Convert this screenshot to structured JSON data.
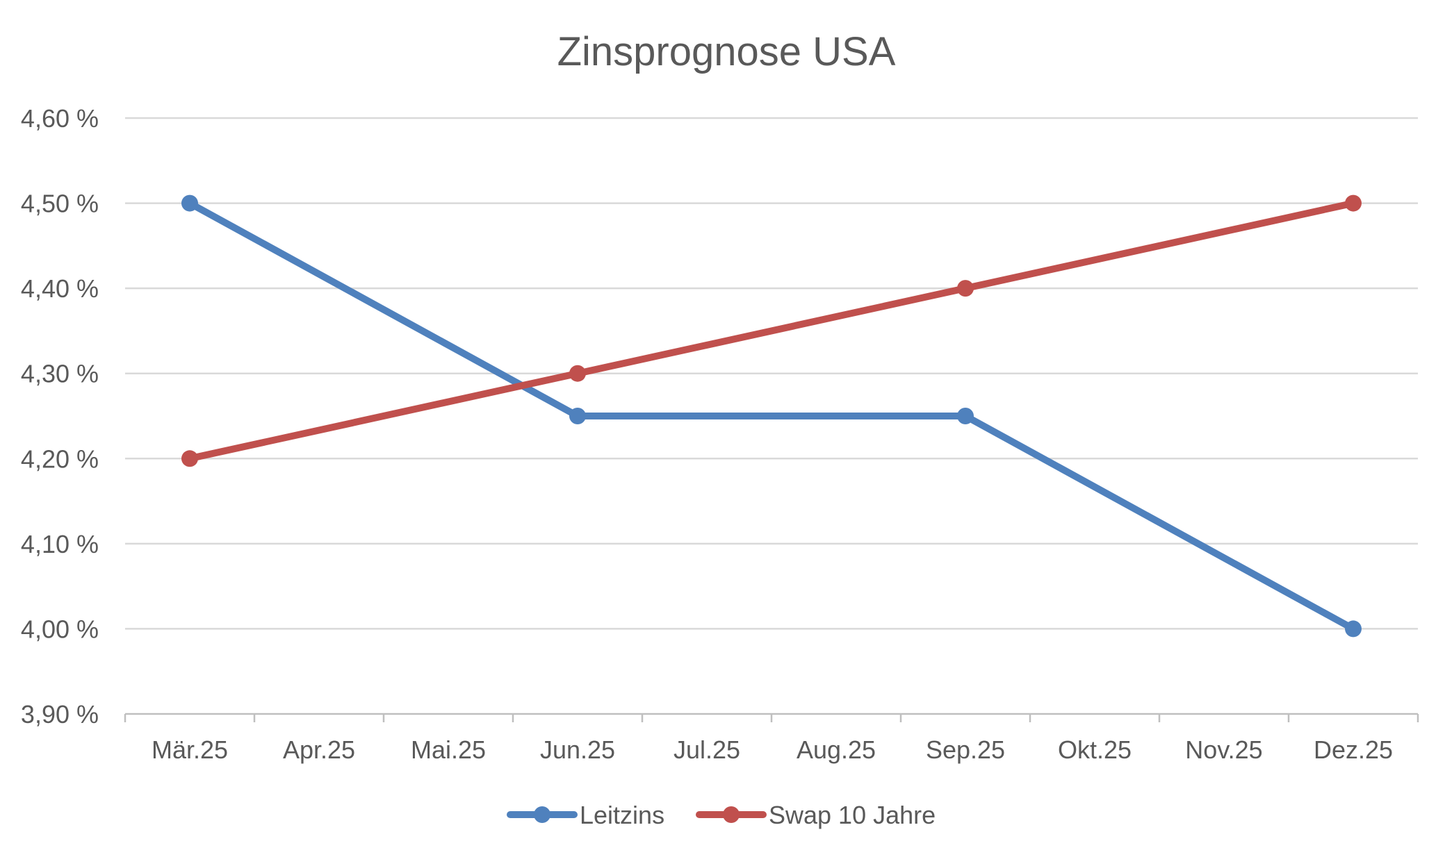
{
  "chart_data": {
    "type": "line",
    "title": "Zinsprognose USA",
    "xlabel": "",
    "ylabel": "",
    "categories": [
      "Mär.25",
      "Apr.25",
      "Mai.25",
      "Jun.25",
      "Jul.25",
      "Aug.25",
      "Sep.25",
      "Okt.25",
      "Nov.25",
      "Dez.25"
    ],
    "ylim": [
      3.9,
      4.6
    ],
    "yticks": [
      3.9,
      4.0,
      4.1,
      4.2,
      4.3,
      4.4,
      4.5,
      4.6
    ],
    "ytick_labels": [
      "3,90 %",
      "4,00 %",
      "4,10 %",
      "4,20 %",
      "4,30 %",
      "4,40 %",
      "4,50 %",
      "4,60 %"
    ],
    "grid": true,
    "legend_position": "bottom",
    "series": [
      {
        "name": "Leitzins",
        "color": "#4f81bd",
        "marker": "circle",
        "points": [
          {
            "x": "Mär.25",
            "y": 4.5
          },
          {
            "x": "Jun.25",
            "y": 4.25
          },
          {
            "x": "Sep.25",
            "y": 4.25
          },
          {
            "x": "Dez.25",
            "y": 4.0
          }
        ]
      },
      {
        "name": "Swap 10 Jahre",
        "color": "#c0504d",
        "marker": "circle",
        "points": [
          {
            "x": "Mär.25",
            "y": 4.2
          },
          {
            "x": "Jun.25",
            "y": 4.3
          },
          {
            "x": "Sep.25",
            "y": 4.4
          },
          {
            "x": "Dez.25",
            "y": 4.5
          }
        ]
      }
    ]
  }
}
